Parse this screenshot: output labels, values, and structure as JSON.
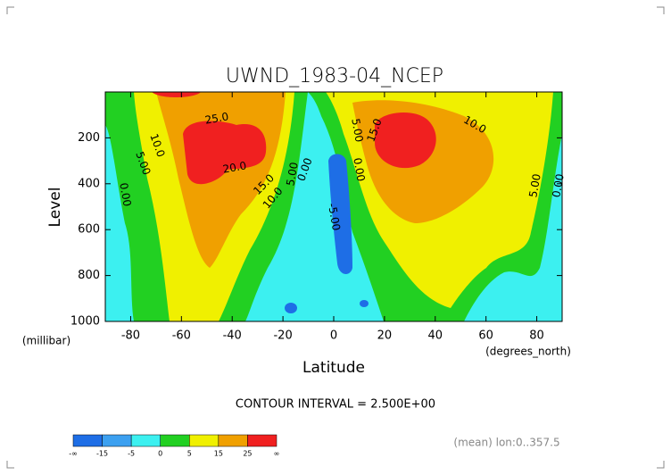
{
  "chart_data": {
    "type": "contour",
    "title": "UWND_1983-04_NCEP",
    "x_label": "Latitude",
    "x_unit": "(degrees_north)",
    "y_label": "Level",
    "y_unit": "(millibar)",
    "xlim": [
      -90,
      90
    ],
    "ylim": [
      1000,
      0
    ],
    "xticks": [
      -80,
      -60,
      -40,
      -20,
      0,
      20,
      40,
      60,
      80
    ],
    "yticks": [
      200,
      400,
      600,
      800,
      1000
    ],
    "contour_labels": [
      "25.0",
      "20.0",
      "15.0",
      "10.0",
      "10.0",
      "5.00",
      "0.00",
      "5.00",
      "0.00",
      "-5.00",
      "5.00",
      "0.00",
      "15.0",
      "10.0",
      "5.00",
      "0.00"
    ],
    "note": "CONTOUR INTERVAL = 2.500E+00",
    "footer": "(mean) lon:0..357.5",
    "colorbar": {
      "labels": [
        "-∞",
        "-15",
        "-5",
        "0",
        "5",
        "15",
        "25",
        "∞"
      ],
      "colors": [
        "#1e6ee6",
        "#3ca0f0",
        "#3cf0f0",
        "#22d022",
        "#f0f000",
        "#f0a000",
        "#f02020"
      ]
    }
  }
}
